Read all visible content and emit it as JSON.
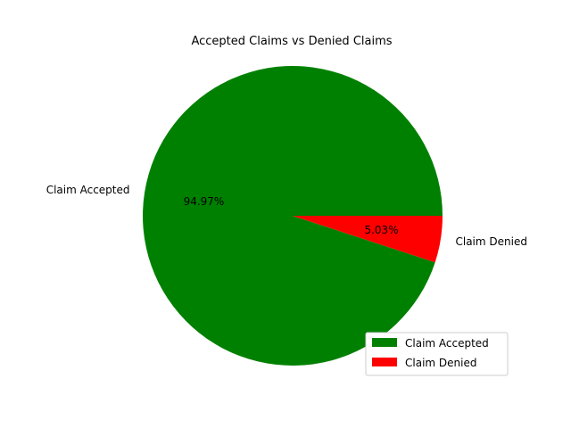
{
  "chart_data": {
    "type": "pie",
    "title": "Accepted Claims vs Denied Claims",
    "categories": [
      "Claim Accepted",
      "Claim Denied"
    ],
    "values": [
      94.97,
      5.03
    ],
    "value_labels": [
      "94.97%",
      "5.03%"
    ],
    "colors": [
      "#008000",
      "#ff0000"
    ],
    "legend": {
      "placement": "lower-right",
      "entries": [
        "Claim Accepted",
        "Claim Denied"
      ]
    }
  }
}
